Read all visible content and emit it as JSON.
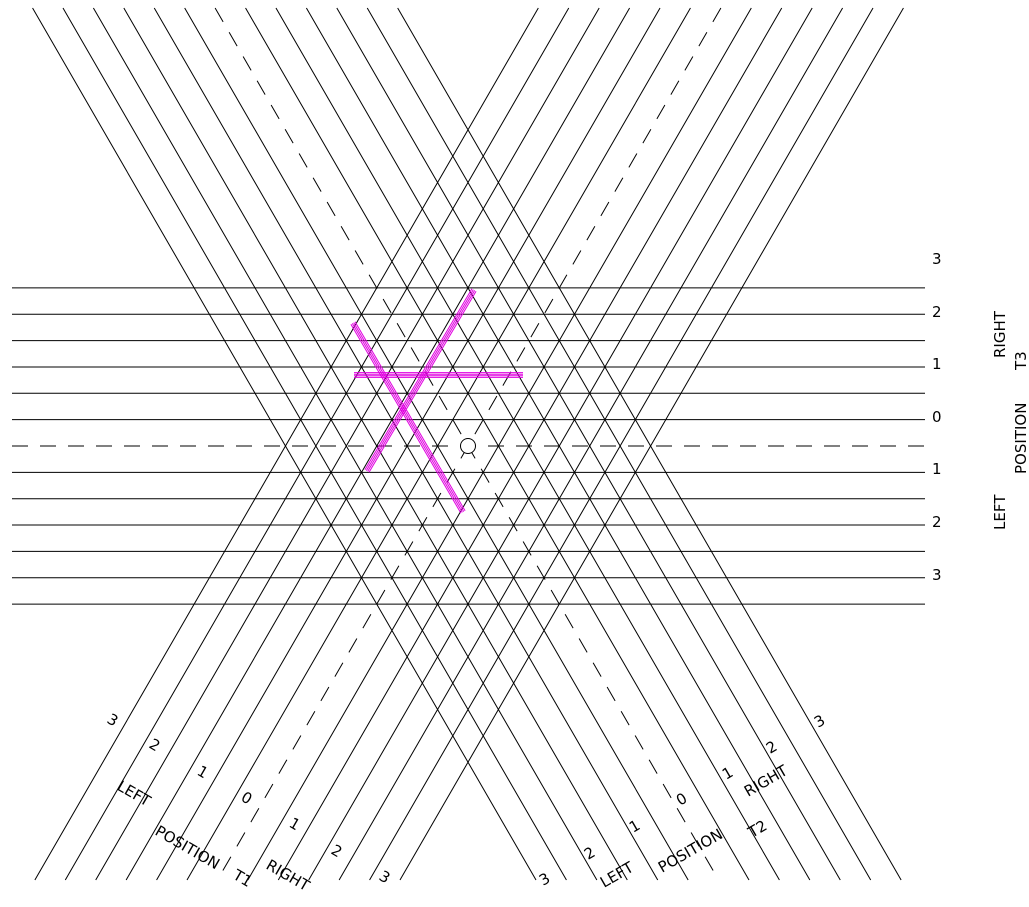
{
  "diagram": {
    "family_t3": {
      "tick_labels": [
        "3",
        "2",
        "1",
        "0",
        "1",
        "2",
        "3"
      ],
      "side_left": "LEFT",
      "side_right": "RIGHT",
      "position": "POSITION",
      "name": "T3"
    },
    "family_t1": {
      "tick_labels": [
        "3",
        "2",
        "1",
        "0",
        "1",
        "2",
        "3"
      ],
      "side_left": "LEFT",
      "side_right": "RIGHT",
      "position": "POSITION",
      "name": "T1"
    },
    "family_t2": {
      "tick_labels": [
        "3",
        "2",
        "1",
        "0",
        "1",
        "2",
        "3"
      ],
      "side_left": "LEFT",
      "side_right": "RIGHT",
      "position": "POSITION",
      "name": "T2"
    },
    "highlight_color": "#e000e0",
    "line_color": "#000000",
    "center_marker": "circle"
  }
}
